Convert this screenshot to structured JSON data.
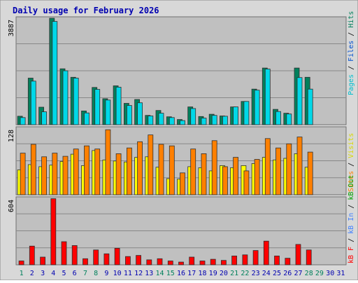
{
  "chart_data": [
    {
      "type": "bar",
      "title": "Daily usage for February 2026",
      "x": [
        "1",
        "2",
        "3",
        "4",
        "5",
        "6",
        "7",
        "8",
        "9",
        "10",
        "11",
        "12",
        "13",
        "14",
        "15",
        "16",
        "17",
        "18",
        "19",
        "20",
        "21",
        "22",
        "23",
        "24",
        "25",
        "26",
        "27",
        "28",
        "29",
        "30",
        "31"
      ],
      "weekend_days": [
        "1",
        "7",
        "8",
        "14",
        "15",
        "21",
        "22",
        "28",
        "29"
      ],
      "ylim": [
        0,
        3887
      ],
      "ymax_label": "3887",
      "grid": true,
      "series": [
        {
          "name": "Pages",
          "color": "#00805c",
          "values": [
            310,
            1700,
            640,
            3887,
            2040,
            1730,
            500,
            1360,
            950,
            1420,
            780,
            920,
            340,
            520,
            290,
            190,
            650,
            300,
            380,
            320,
            650,
            850,
            1300,
            2070,
            560,
            420,
            2070,
            1730,
            0,
            0,
            0
          ]
        },
        {
          "name": "Hits",
          "color": "#00d8e8",
          "values": [
            260,
            1590,
            470,
            3770,
            1970,
            1700,
            430,
            1290,
            900,
            1370,
            700,
            800,
            320,
            420,
            260,
            150,
            590,
            240,
            340,
            310,
            650,
            850,
            1260,
            2030,
            480,
            390,
            1720,
            1300,
            0,
            0,
            0
          ]
        }
      ],
      "right_legend": [
        {
          "text": "Pages",
          "color": "#00bfcf"
        },
        {
          "text": " / ",
          "color": "#000000"
        },
        {
          "text": "Files",
          "color": "#0050d0"
        },
        {
          "text": " / ",
          "color": "#000000"
        },
        {
          "text": "Hits",
          "color": "#00805c"
        }
      ]
    },
    {
      "type": "bar",
      "x": [
        "1",
        "2",
        "3",
        "4",
        "5",
        "6",
        "7",
        "8",
        "9",
        "10",
        "11",
        "12",
        "13",
        "14",
        "15",
        "16",
        "17",
        "18",
        "19",
        "20",
        "21",
        "22",
        "23",
        "24",
        "25",
        "26",
        "27",
        "28",
        "29",
        "30",
        "31"
      ],
      "ylim": [
        0,
        128
      ],
      "ymax_label": "128",
      "grid": true,
      "series": [
        {
          "name": "Visits",
          "color": "#ffff00",
          "values": [
            48,
            58,
            54,
            57,
            64,
            78,
            56,
            85,
            67,
            65,
            63,
            72,
            73,
            53,
            31,
            30,
            54,
            52,
            46,
            56,
            52,
            56,
            60,
            72,
            67,
            70,
            79,
            53,
            0,
            0,
            0
          ]
        },
        {
          "name": "Sites",
          "color": "#ff8000",
          "values": [
            80,
            97,
            73,
            80,
            74,
            88,
            94,
            88,
            125,
            79,
            90,
            102,
            115,
            97,
            94,
            42,
            88,
            79,
            104,
            54,
            72,
            46,
            68,
            108,
            90,
            98,
            111,
            82,
            0,
            0,
            0
          ]
        }
      ],
      "right_legend": [
        {
          "text": "Sites",
          "color": "#ff8000"
        },
        {
          "text": " / ",
          "color": "#000000"
        },
        {
          "text": "Visits",
          "color": "#d8d800"
        }
      ]
    },
    {
      "type": "bar",
      "x": [
        "1",
        "2",
        "3",
        "4",
        "5",
        "6",
        "7",
        "8",
        "9",
        "10",
        "11",
        "12",
        "13",
        "14",
        "15",
        "16",
        "17",
        "18",
        "19",
        "20",
        "21",
        "22",
        "23",
        "24",
        "25",
        "26",
        "27",
        "28",
        "29",
        "30",
        "31"
      ],
      "ylim": [
        0,
        604
      ],
      "ymax_label": "604",
      "grid": true,
      "series": [
        {
          "name": "KBytes",
          "color": "#ff0000",
          "values": [
            35,
            170,
            70,
            600,
            210,
            175,
            55,
            135,
            100,
            150,
            75,
            85,
            45,
            55,
            35,
            25,
            70,
            35,
            50,
            40,
            80,
            90,
            130,
            215,
            80,
            60,
            185,
            135,
            0,
            0,
            0
          ]
        }
      ],
      "right_legend": [
        {
          "text": "kB F",
          "color": "#ff0000"
        },
        {
          "text": " / ",
          "color": "#000000"
        },
        {
          "text": "kB In",
          "color": "#4080ff"
        },
        {
          "text": " / ",
          "color": "#000000"
        },
        {
          "text": "kB Out",
          "color": "#00a000"
        }
      ]
    }
  ],
  "colors": {
    "plot_bg": "#c0c0c0",
    "frame_bg": "#d8d8d8",
    "title": "#0000b0",
    "axis_text": "#000000",
    "weekend_day": "#00805c",
    "weekday": "#0000b0"
  }
}
